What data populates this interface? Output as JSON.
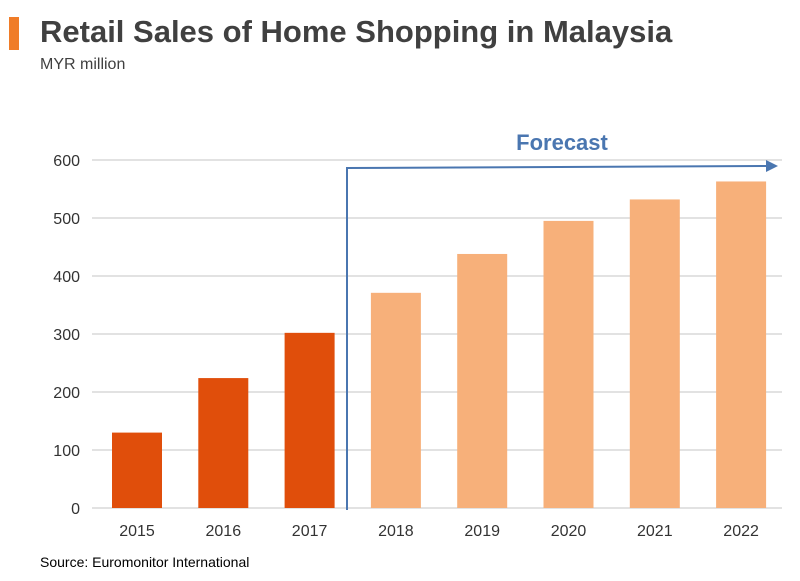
{
  "chart_data": {
    "type": "bar",
    "title": "Retail Sales of Home Shopping in Malaysia",
    "subtitle": "MYR million",
    "source": "Source: Euromonitor  International",
    "annotation": "Forecast",
    "categories": [
      "2015",
      "2016",
      "2017",
      "2018",
      "2019",
      "2020",
      "2021",
      "2022"
    ],
    "values": [
      130,
      224,
      302,
      371,
      438,
      495,
      532,
      563
    ],
    "forecast": [
      false,
      false,
      false,
      true,
      true,
      true,
      true,
      true
    ],
    "ylim": [
      0,
      600
    ],
    "yticks": [
      0,
      100,
      200,
      300,
      400,
      500,
      600
    ],
    "grid": true,
    "xlabel": "",
    "ylabel": "",
    "colors": {
      "actual": "#E04E0B",
      "forecast": "#F7B07A",
      "arrow": "#4A76B0",
      "accent": "#F07C28"
    }
  }
}
